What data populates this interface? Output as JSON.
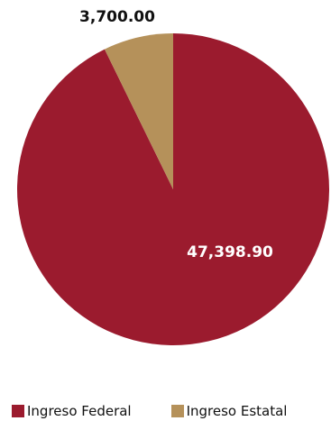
{
  "chart_data": {
    "type": "pie",
    "title": "",
    "categories": [
      "Ingreso Federal",
      "Ingreso Estatal"
    ],
    "values": [
      47398.9,
      3700.0
    ],
    "value_labels": [
      "47,398.90",
      "3,700.00"
    ],
    "colors": [
      "#9b1b2e",
      "#b5915a"
    ],
    "start_angle_deg": 0,
    "direction": "clockwise",
    "legend_position": "bottom"
  }
}
